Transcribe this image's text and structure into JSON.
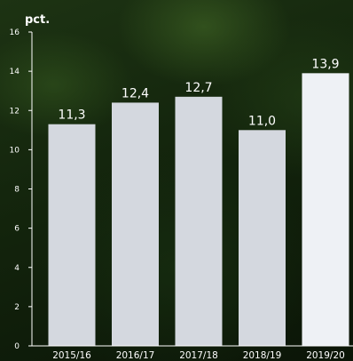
{
  "chart_data": {
    "type": "bar",
    "ylabel": "pct.",
    "categories": [
      "2015/16",
      "2016/17",
      "2017/18",
      "2018/19",
      "2019/20"
    ],
    "values": [
      11.3,
      12.4,
      12.7,
      11.0,
      13.9
    ],
    "value_labels": [
      "11,3",
      "12,4",
      "12,7",
      "11,0",
      "13,9"
    ],
    "ylim": [
      0,
      16
    ],
    "yticks": [
      0,
      2,
      4,
      6,
      8,
      10,
      12,
      14,
      16
    ],
    "grid": false,
    "legend": "none",
    "colors": {
      "bar": "#d4d8df",
      "highlight_bar": "#eef1f5",
      "axis": "#ffffff",
      "text": "#ffffff"
    }
  }
}
